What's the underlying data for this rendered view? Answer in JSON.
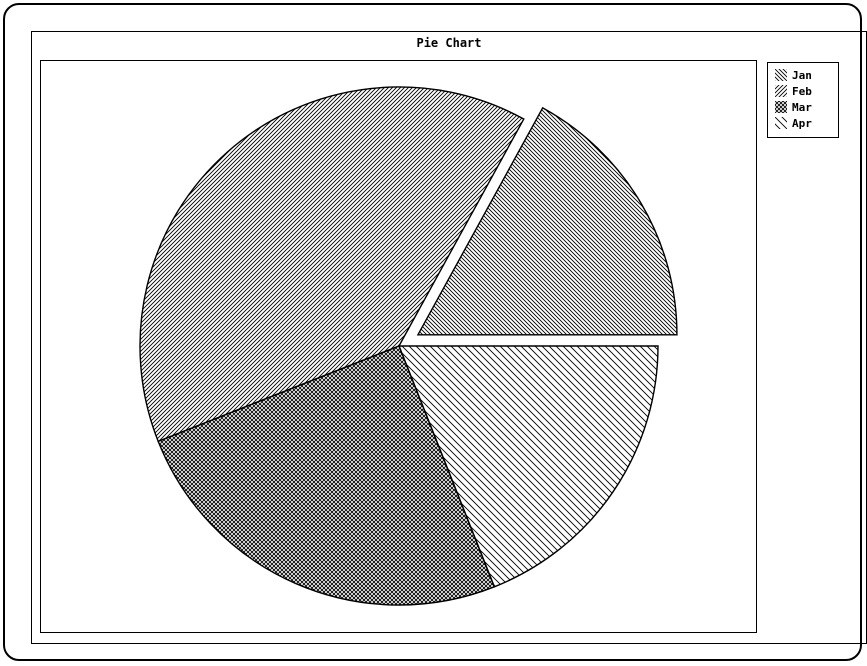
{
  "chart_data": {
    "type": "pie",
    "title": "Pie Chart",
    "categories": [
      "Jan",
      "Feb",
      "Mar",
      "Apr"
    ],
    "values": [
      17,
      39,
      25,
      19
    ],
    "exploded": [
      "Jan"
    ],
    "legend_position": "top-right",
    "patterns": {
      "Jan": "diagonal-backslash-dense",
      "Feb": "diagonal-slash-dense",
      "Mar": "crosshatch",
      "Apr": "diagonal-backslash"
    },
    "colors": {
      "stroke": "#000000",
      "fill": "#ffffff"
    }
  }
}
